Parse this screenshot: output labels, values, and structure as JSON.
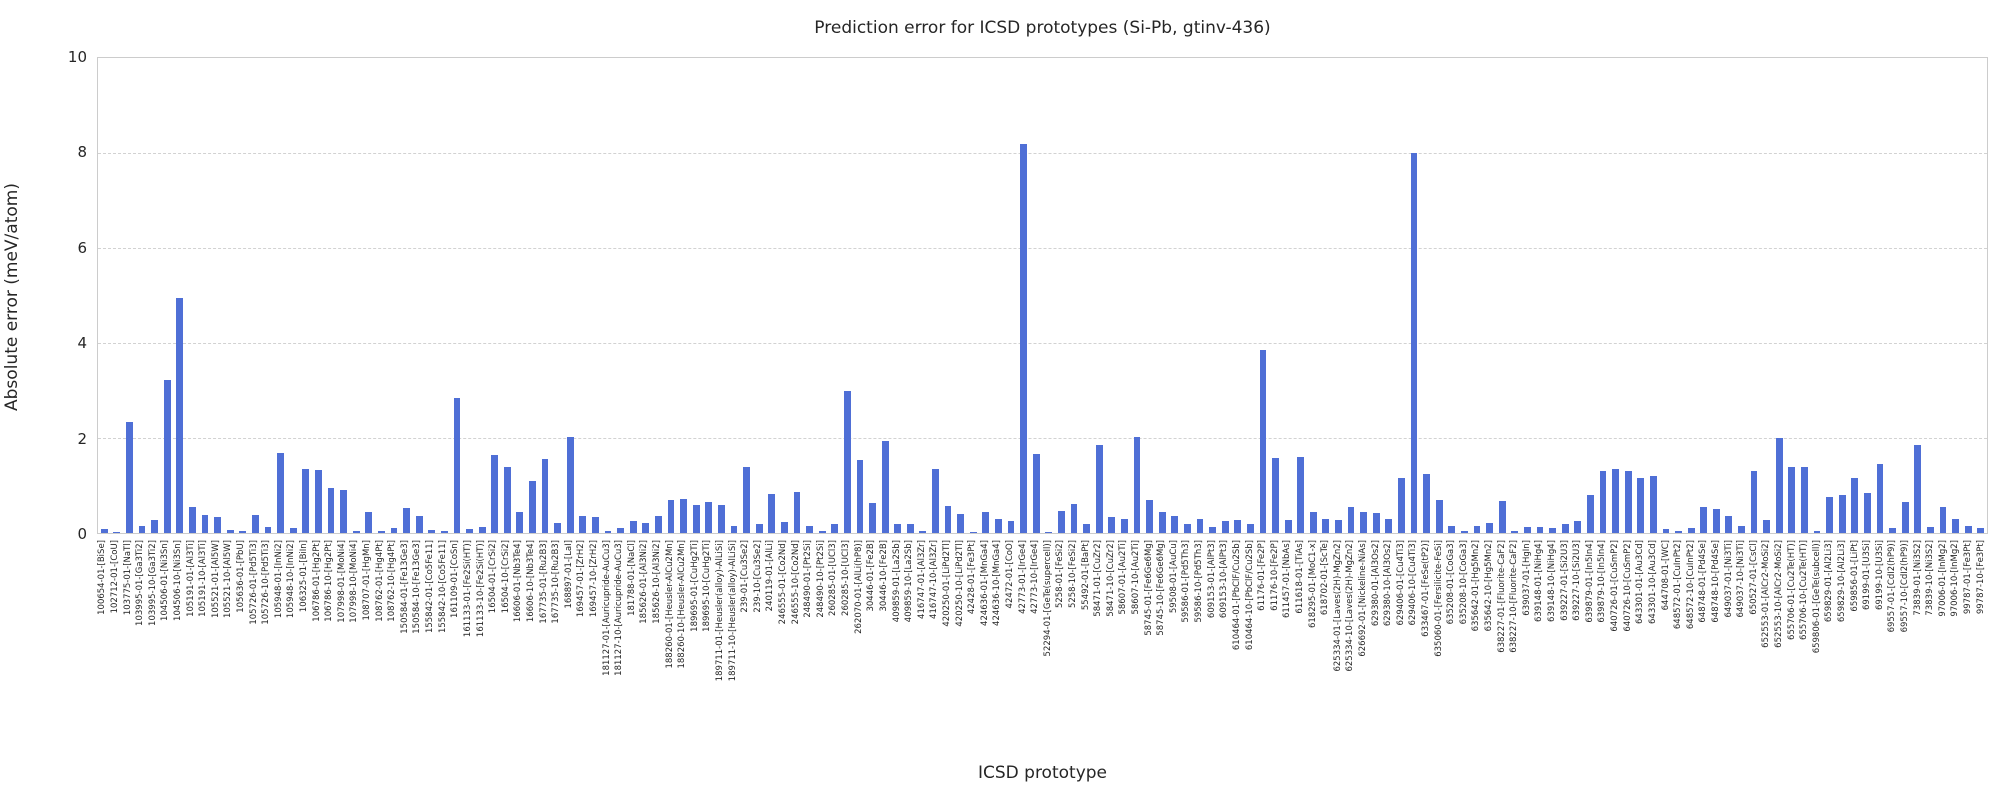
{
  "title": "Prediction error for ICSD prototypes (Si-Pb, gtinv-436)",
  "axes": {
    "xlabel": "ICSD prototype",
    "ylabel": "Absolute error (meV/atom)",
    "yticks": [
      0,
      2,
      4,
      6,
      8,
      10
    ],
    "ylim": [
      0,
      10
    ]
  },
  "colors": {
    "bar": "#4f6fd6",
    "grid": "#d2d2d2",
    "spine": "#cccccc",
    "text": "#262626"
  },
  "chart_data": {
    "type": "bar",
    "title": "Prediction error for ICSD prototypes (Si-Pb, gtinv-436)",
    "xlabel": "ICSD prototype",
    "ylabel": "Absolute error (meV/atom)",
    "ylim": [
      0,
      10
    ],
    "grid": "horizontal-dashed",
    "legend": "none",
    "categories": [
      "100654-01-[BiSe]",
      "102712-01-[CoU]",
      "103775-01-[NaTl]",
      "103995-01-[Ga3Ti2]",
      "103995-10-[Ga3Ti2]",
      "104506-01-[Ni3Sn]",
      "104506-10-[Ni3Sn]",
      "105191-01-[Al3Ti]",
      "105191-10-[Al3Ti]",
      "105521-01-[Al5W]",
      "105521-10-[Al5W]",
      "105636-01-[PbU]",
      "105726-01-[Pd5Ti3]",
      "105726-10-[Pd5Ti3]",
      "105948-01-[InNi2]",
      "105948-10-[InNi2]",
      "106325-01-[BiIn]",
      "106786-01-[Hg2Pt]",
      "106786-10-[Hg2Pt]",
      "107998-01-[MoNi4]",
      "107998-10-[MoNi4]",
      "108707-01-[HgMn]",
      "108762-01-[Hg4Pt]",
      "108762-10-[Hg4Pt]",
      "150584-01-[Fe13Ge3]",
      "150584-10-[Fe13Ge3]",
      "155842-01-[Co5Fe11]",
      "155842-10-[Co5Fe11]",
      "161109-01-[CoSn]",
      "161133-01-[Fe2Si(HT)]",
      "161133-10-[Fe2Si(HT)]",
      "16504-01-[CrSi2]",
      "16504-10-[CrSi2]",
      "16606-01-[Nb3Te4]",
      "16606-10-[Nb3Te4]",
      "167735-01-[Ru2B3]",
      "167735-10-[Ru2B3]",
      "168897-01-[LaI]",
      "169457-01-[ZrH2]",
      "169457-10-[ZrH2]",
      "181127-01-[Auricupride-AuCu3]",
      "181127-10-[Auricupride-AuCu3]",
      "181788-01-[NaCl]",
      "185626-01-[Al3Ni2]",
      "185626-10-[Al3Ni2]",
      "188260-01-[Heusler-AlCu2Mn]",
      "188260-10-[Heusler-AlCu2Mn]",
      "189695-01-[CuHg2Ti]",
      "189695-10-[CuHg2Ti]",
      "189711-01-[Heusler(alloy)-AlLiSi]",
      "189711-10-[Heusler(alloy)-AlLiSi]",
      "239-01-[Cu3Se2]",
      "239-10-[Cu3Se2]",
      "240119-01-[AlLi]",
      "246555-01-[Co2Nd]",
      "246555-10-[Co2Nd]",
      "248490-01-[Pt2Si]",
      "248490-10-[Pt2Si]",
      "260285-01-[UCl3]",
      "260285-10-[UCl3]",
      "262070-01-[AlLi(hP8)]",
      "30446-01-[Fe2B]",
      "30446-10-[Fe2B]",
      "409859-01-[La2Sb]",
      "409859-10-[La2Sb]",
      "416747-01-[Al3Zr]",
      "416747-10-[Al3Zr]",
      "420250-01-[LiPd2Tl]",
      "420250-10-[LiPd2Tl]",
      "42428-01-[Fe3Pt]",
      "424636-01-[MnGa4]",
      "424636-10-[MnGa4]",
      "42472-01-[CoO]",
      "42773-01-[IrGe4]",
      "42773-10-[IrGe4]",
      "52294-01-[GeTe(supercell)]",
      "5258-01-[FeSi2]",
      "5258-10-[FeSi2]",
      "55492-01-[BaPt]",
      "58471-01-[CuZr2]",
      "58471-10-[CuZr2]",
      "58607-01-[Au2Ti]",
      "58607-10-[Au2Ti]",
      "58745-01-[Fe6Ge6Mg]",
      "58745-10-[Fe6Ge6Mg]",
      "59508-01-[AuCu]",
      "59586-01-[Pd5Th3]",
      "59586-10-[Pd5Th3]",
      "609153-01-[AlPt3]",
      "609153-10-[AlPt3]",
      "610464-01-[PbClF/Cu2Sb]",
      "610464-10-[PbClF/Cu2Sb]",
      "61176-01-[Fe2P]",
      "61176-10-[Fe2P]",
      "611457-01-[NbAs]",
      "611618-01-[TiAs]",
      "618295-01-[MoC1-x]",
      "618702-01-[ScTe]",
      "625334-01-[Laves(2H)-MgZn2]",
      "625334-10-[Laves(2H)-MgZn2]",
      "626692-01-[Nickeline-NiAs]",
      "629380-01-[Al3Os2]",
      "629380-10-[Al3Os2]",
      "629406-01-[Cu4Ti3]",
      "629406-10-[Cu4Ti3]",
      "633467-01-[FeSe(tP2)]",
      "635060-01-[Fersilicite-FeSi]",
      "635208-01-[CoGa3]",
      "635208-10-[CoGa3]",
      "635642-01-[Hg5Mn2]",
      "635642-10-[Hg5Mn2]",
      "638227-01-[Fluorite-CaF2]",
      "638227-10-[Fluorite-CaF2]",
      "639037-01-[HgIn]",
      "639148-01-[NiHg4]",
      "639148-10-[NiHg4]",
      "639227-01-[Si2U3]",
      "639227-10-[Si2U3]",
      "639879-01-[In5In4]",
      "639879-10-[In5In4]",
      "640726-01-[CuSmP2]",
      "640726-10-[CuSmP2]",
      "643301-01-[Au3Cd]",
      "643301-10-[Au3Cd]",
      "644708-01-[WC]",
      "648572-01-[CuInPt2]",
      "648572-10-[CuInPt2]",
      "648748-01-[Pd4Se]",
      "648748-10-[Pd4Se]",
      "649037-01-[Ni3Ti]",
      "649037-10-[Ni3Ti]",
      "650527-01-[CsCl]",
      "652553-01-[AlCr2-MoSi2]",
      "652553-10-[AlCr2-MoSi2]",
      "655706-01-[Cu2Te(HT)]",
      "655706-10-[Cu2Te(HT)]",
      "659806-01-[GeTe(subcell)]",
      "659829-01-[Al2Li3]",
      "659829-10-[Al2Li3]",
      "659856-01-[LiPt]",
      "69199-01-[U3Si]",
      "69199-10-[U3Si]",
      "69557-01-[CdI2(hP9)]",
      "69557-10-[CdI2(hP9)]",
      "73839-01-[Ni3S2]",
      "73839-10-[Ni3S2]",
      "97006-01-[InMg2]",
      "97006-10-[InMg2]",
      "99787-01-[Fe3Pt]",
      "99787-10-[Fe3Pt]"
    ],
    "values": [
      0.08,
      0.03,
      2.33,
      0.15,
      0.27,
      3.22,
      4.95,
      0.54,
      0.37,
      0.34,
      0.06,
      0.05,
      0.38,
      0.12,
      1.68,
      0.1,
      1.35,
      1.32,
      0.95,
      0.9,
      0.05,
      0.45,
      0.05,
      0.1,
      0.52,
      0.35,
      0.06,
      0.05,
      2.85,
      0.08,
      0.12,
      1.65,
      1.4,
      0.45,
      1.1,
      1.55,
      0.22,
      2.03,
      0.35,
      0.33,
      0.05,
      0.1,
      0.25,
      0.22,
      0.35,
      0.7,
      0.72,
      0.6,
      0.65,
      0.6,
      0.15,
      1.4,
      0.2,
      0.83,
      0.23,
      0.87,
      0.15,
      0.04,
      0.2,
      3.0,
      1.53,
      0.64,
      1.94,
      0.19,
      0.2,
      0.05,
      1.34,
      0.56,
      0.41,
      0.03,
      0.45,
      0.3,
      0.25,
      8.2,
      1.66,
      0.03,
      0.47,
      0.61,
      0.2,
      1.85,
      0.33,
      0.3,
      2.02,
      0.7,
      0.45,
      0.35,
      0.18,
      0.3,
      0.12,
      0.25,
      0.28,
      0.18,
      3.85,
      1.58,
      0.28,
      1.6,
      0.45,
      0.3,
      0.28,
      0.55,
      0.45,
      0.42,
      0.3,
      1.15,
      8.0,
      1.25,
      0.7,
      0.15,
      0.05,
      0.15,
      0.22,
      0.68,
      0.05,
      0.12,
      0.12,
      0.1,
      0.2,
      0.25,
      0.8,
      1.3,
      1.35,
      1.3,
      1.15,
      1.2,
      0.08,
      0.05,
      0.1,
      0.55,
      0.5,
      0.35,
      0.15,
      1.3,
      0.28,
      2.0,
      1.4,
      1.4,
      0.05,
      0.75,
      0.8,
      1.15,
      0.85,
      1.45,
      0.1,
      0.65,
      1.85,
      0.12,
      0.55,
      0.3,
      0.15,
      0.1
    ]
  }
}
